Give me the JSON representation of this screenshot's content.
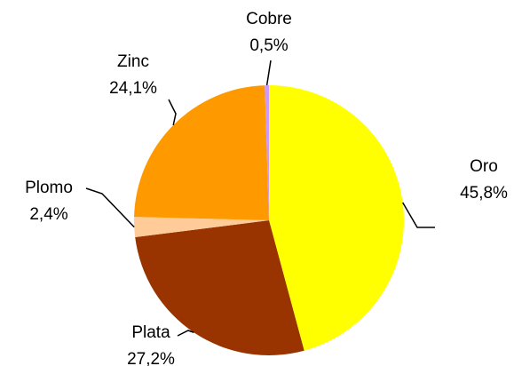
{
  "chart_data": {
    "type": "pie",
    "categories": [
      "Oro",
      "Plata",
      "Plomo",
      "Zinc",
      "Cobre"
    ],
    "values": [
      45.8,
      27.2,
      2.4,
      24.1,
      0.5
    ],
    "value_labels": [
      "45,8%",
      "27,2%",
      "2,4%",
      "24,1%",
      "0,5%"
    ],
    "colors": [
      "#FFFF00",
      "#993300",
      "#FFCC99",
      "#FF9900",
      "#CC99FF"
    ]
  }
}
